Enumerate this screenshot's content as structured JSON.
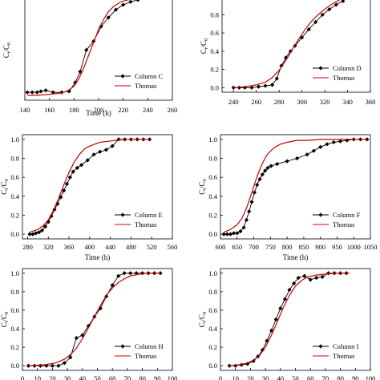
{
  "colors": {
    "data_series": "#000000",
    "model_series": "#cc0000",
    "axis": "#000000"
  },
  "chart_data": [
    {
      "type": "line",
      "xlabel": "Time (h)",
      "ylabel": "Ct/C0",
      "xlim": [
        140,
        260
      ],
      "ylim": [
        -0.05,
        1.05
      ],
      "xticks": [
        140,
        160,
        180,
        200,
        220,
        240,
        260
      ],
      "yticks": [],
      "legend_position": "bottom-right",
      "series": [
        {
          "name": "Column C",
          "marker": "diamond",
          "color": "#000000",
          "x": [
            142,
            146,
            150,
            153,
            157,
            163,
            170,
            176,
            181,
            185,
            190,
            196,
            202,
            208,
            214,
            220,
            226,
            232
          ],
          "y": [
            0.03,
            0.03,
            0.03,
            0.04,
            0.05,
            0.03,
            0.03,
            0.04,
            0.13,
            0.24,
            0.46,
            0.55,
            0.7,
            0.79,
            0.87,
            0.92,
            0.95,
            0.97
          ]
        },
        {
          "name": "Thomas",
          "marker": "none",
          "color": "#cc0000",
          "x": [
            142,
            150,
            160,
            168,
            174,
            180,
            184,
            188,
            192,
            196,
            200,
            204,
            208,
            212,
            218,
            224,
            230,
            234
          ],
          "y": [
            0.0,
            0.0,
            0.01,
            0.02,
            0.04,
            0.09,
            0.17,
            0.28,
            0.41,
            0.54,
            0.67,
            0.77,
            0.85,
            0.9,
            0.95,
            0.97,
            0.99,
            1.0
          ]
        }
      ]
    },
    {
      "type": "line",
      "xlabel": "",
      "ylabel": "Ct/C0",
      "xlim": [
        230,
        360
      ],
      "ylim": [
        -0.05,
        1.05
      ],
      "xticks": [
        240,
        260,
        280,
        300,
        320,
        340,
        360
      ],
      "yticks": [
        0.0,
        0.2,
        0.4,
        0.6,
        0.8
      ],
      "ytick_labels": [
        "0.0",
        "0.2",
        "0.4",
        "0.6",
        "0.8"
      ],
      "legend_position": "bottom-right",
      "series": [
        {
          "name": "Column D",
          "marker": "diamond",
          "color": "#000000",
          "x": [
            240,
            245,
            250,
            256,
            262,
            268,
            274,
            278,
            282,
            286,
            290,
            294,
            300,
            306,
            312,
            318,
            324,
            330,
            336
          ],
          "y": [
            0.0,
            0.0,
            0.0,
            0.0,
            0.01,
            0.02,
            0.03,
            0.1,
            0.24,
            0.33,
            0.4,
            0.46,
            0.55,
            0.64,
            0.72,
            0.8,
            0.86,
            0.91,
            0.95
          ]
        },
        {
          "name": "Thomas",
          "marker": "none",
          "color": "#cc0000",
          "x": [
            240,
            250,
            260,
            268,
            274,
            280,
            286,
            292,
            298,
            304,
            310,
            316,
            322,
            328,
            334,
            338
          ],
          "y": [
            0.0,
            0.01,
            0.03,
            0.06,
            0.11,
            0.19,
            0.3,
            0.43,
            0.55,
            0.66,
            0.75,
            0.82,
            0.88,
            0.93,
            0.97,
            0.99
          ]
        }
      ]
    },
    {
      "type": "line",
      "xlabel": "Time (h)",
      "ylabel": "Ct/C0",
      "xlim": [
        270,
        560
      ],
      "ylim": [
        -0.05,
        1.05
      ],
      "xticks": [
        280,
        320,
        360,
        400,
        440,
        480,
        520,
        560
      ],
      "yticks": [
        0.0,
        0.2,
        0.4,
        0.6,
        0.8,
        1.0
      ],
      "ytick_labels": [
        "0.0",
        "0.2",
        "0.4",
        "0.6",
        "0.8",
        "1.0"
      ],
      "legend_position": "bottom-right",
      "series": [
        {
          "name": "Column E",
          "marker": "diamond",
          "color": "#000000",
          "x": [
            284,
            290,
            296,
            302,
            308,
            314,
            320,
            326,
            332,
            338,
            344,
            350,
            356,
            362,
            368,
            376,
            384,
            396,
            408,
            420,
            432,
            444,
            456,
            468,
            480,
            492,
            504,
            516
          ],
          "y": [
            0.0,
            0.0,
            0.01,
            0.02,
            0.04,
            0.08,
            0.13,
            0.19,
            0.26,
            0.32,
            0.39,
            0.46,
            0.53,
            0.6,
            0.66,
            0.7,
            0.73,
            0.78,
            0.84,
            0.87,
            0.89,
            0.93,
            1.0,
            1.0,
            1.0,
            1.0,
            1.0,
            1.0
          ]
        },
        {
          "name": "Thomas",
          "marker": "none",
          "color": "#cc0000",
          "x": [
            284,
            300,
            310,
            320,
            330,
            340,
            350,
            360,
            370,
            380,
            390,
            400,
            410,
            420,
            435,
            450,
            470,
            490,
            520
          ],
          "y": [
            0.02,
            0.05,
            0.09,
            0.15,
            0.25,
            0.38,
            0.52,
            0.65,
            0.76,
            0.84,
            0.9,
            0.93,
            0.95,
            0.97,
            0.98,
            0.99,
            1.0,
            1.0,
            1.0
          ]
        }
      ]
    },
    {
      "type": "line",
      "xlabel": "Time (h)",
      "ylabel": "Ct/C0",
      "xlim": [
        600,
        1050
      ],
      "ylim": [
        -0.05,
        1.05
      ],
      "xticks": [
        600,
        650,
        700,
        750,
        800,
        850,
        900,
        950,
        1000,
        1050
      ],
      "yticks": [
        0.0,
        0.2,
        0.4,
        0.6,
        0.8,
        1.0
      ],
      "ytick_labels": [
        "0.0",
        "0.2",
        "0.4",
        "0.6",
        "0.8",
        "1.0"
      ],
      "legend_position": "bottom-right",
      "series": [
        {
          "name": "Column F",
          "marker": "diamond",
          "color": "#000000",
          "x": [
            610,
            620,
            630,
            640,
            650,
            660,
            670,
            678,
            686,
            694,
            702,
            710,
            718,
            726,
            734,
            742,
            752,
            770,
            800,
            830,
            860,
            880,
            900,
            920,
            940,
            960,
            980,
            1000,
            1020,
            1040
          ],
          "y": [
            0.0,
            0.0,
            0.0,
            0.01,
            0.01,
            0.03,
            0.07,
            0.15,
            0.24,
            0.34,
            0.44,
            0.52,
            0.58,
            0.63,
            0.67,
            0.7,
            0.72,
            0.74,
            0.77,
            0.8,
            0.84,
            0.88,
            0.92,
            0.95,
            0.97,
            0.98,
            0.99,
            1.0,
            1.0,
            1.0
          ]
        },
        {
          "name": "Thomas",
          "marker": "none",
          "color": "#cc0000",
          "x": [
            610,
            630,
            650,
            665,
            680,
            695,
            710,
            725,
            740,
            760,
            780,
            800,
            830,
            860,
            900,
            950,
            1000,
            1040
          ],
          "y": [
            0.02,
            0.05,
            0.1,
            0.17,
            0.29,
            0.45,
            0.61,
            0.74,
            0.84,
            0.91,
            0.95,
            0.97,
            0.99,
            0.99,
            1.0,
            1.0,
            1.0,
            1.0
          ]
        }
      ]
    },
    {
      "type": "line",
      "xlabel": "",
      "ylabel": "Ct/C0",
      "xlim": [
        0,
        100
      ],
      "ylim": [
        -0.05,
        1.05
      ],
      "xticks": [
        0,
        10,
        20,
        30,
        40,
        50,
        60,
        70,
        80,
        90,
        100
      ],
      "yticks": [
        0.0,
        0.2,
        0.4,
        0.6,
        0.8,
        1.0
      ],
      "ytick_labels": [
        "0.0",
        "0.2",
        "0.4",
        "0.6",
        "0.8",
        "1.0"
      ],
      "legend_position": "bottom-right",
      "series": [
        {
          "name": "Column H",
          "marker": "diamond",
          "color": "#000000",
          "x": [
            4,
            8,
            12,
            16,
            20,
            24,
            28,
            32,
            36,
            40,
            44,
            48,
            52,
            56,
            60,
            64,
            68,
            72,
            76,
            80,
            84,
            88,
            92
          ],
          "y": [
            0.0,
            0.0,
            0.0,
            0.0,
            0.0,
            0.0,
            0.03,
            0.09,
            0.3,
            0.33,
            0.43,
            0.53,
            0.62,
            0.75,
            0.87,
            0.97,
            1.0,
            1.0,
            1.0,
            1.0,
            1.0,
            1.0,
            1.0
          ]
        },
        {
          "name": "Thomas",
          "marker": "none",
          "color": "#cc0000",
          "x": [
            4,
            14,
            22,
            28,
            32,
            36,
            40,
            44,
            48,
            52,
            56,
            60,
            64,
            68,
            72,
            78,
            84,
            92
          ],
          "y": [
            0.0,
            0.01,
            0.03,
            0.07,
            0.12,
            0.19,
            0.29,
            0.41,
            0.53,
            0.65,
            0.76,
            0.84,
            0.9,
            0.94,
            0.97,
            0.99,
            1.0,
            1.0
          ]
        }
      ]
    },
    {
      "type": "line",
      "xlabel": "",
      "ylabel": "Ct/C0",
      "xlim": [
        0,
        100
      ],
      "ylim": [
        -0.05,
        1.05
      ],
      "xticks": [
        0,
        10,
        20,
        30,
        40,
        50,
        60,
        70,
        80,
        90,
        100
      ],
      "yticks": [
        0.0,
        0.2,
        0.4,
        0.6,
        0.8,
        1.0
      ],
      "ytick_labels": [
        "0.0",
        "0.2",
        "0.4",
        "0.6",
        "0.8",
        "1.0"
      ],
      "legend_position": "bottom-right",
      "series": [
        {
          "name": "Column I",
          "marker": "diamond",
          "color": "#000000",
          "x": [
            6,
            10,
            14,
            18,
            22,
            25,
            28,
            31,
            34,
            37,
            40,
            43,
            46,
            49,
            52,
            56,
            60,
            64,
            68,
            72,
            76,
            80,
            84
          ],
          "y": [
            0.0,
            0.0,
            0.01,
            0.02,
            0.05,
            0.1,
            0.17,
            0.27,
            0.38,
            0.5,
            0.62,
            0.72,
            0.82,
            0.89,
            0.95,
            0.97,
            0.93,
            0.95,
            0.96,
            1.0,
            1.0,
            1.0,
            1.0
          ]
        },
        {
          "name": "Thomas",
          "marker": "none",
          "color": "#cc0000",
          "x": [
            6,
            12,
            18,
            22,
            26,
            30,
            34,
            38,
            42,
            46,
            50,
            54,
            58,
            64,
            70,
            78,
            86
          ],
          "y": [
            0.0,
            0.01,
            0.03,
            0.06,
            0.11,
            0.2,
            0.33,
            0.48,
            0.63,
            0.76,
            0.86,
            0.92,
            0.96,
            0.98,
            0.99,
            1.0,
            1.0
          ]
        }
      ]
    }
  ]
}
